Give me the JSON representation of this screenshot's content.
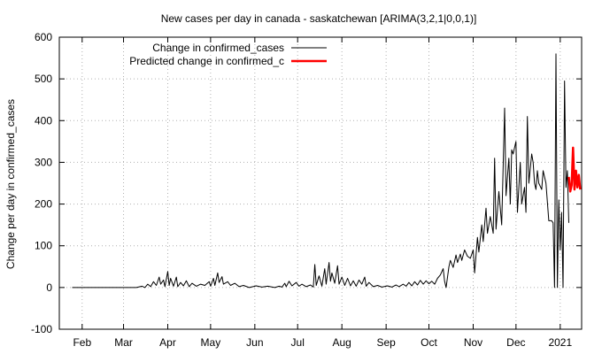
{
  "chart_data": {
    "type": "line",
    "title": "New cases per day in canada - saskatchewan [ARIMA(3,2,1|0,0,1)]",
    "ylabel": "Change per day in confirmed_cases",
    "xlabel": "",
    "ylim": [
      -100,
      600
    ],
    "yticks": [
      -100,
      0,
      100,
      200,
      300,
      400,
      500,
      600
    ],
    "xlim": [
      "2020-01-16",
      "2021-01-16"
    ],
    "xticks": [
      {
        "date": "2020-02-01",
        "label": "Feb"
      },
      {
        "date": "2020-03-01",
        "label": "Mar"
      },
      {
        "date": "2020-04-01",
        "label": "Apr"
      },
      {
        "date": "2020-05-01",
        "label": "May"
      },
      {
        "date": "2020-06-01",
        "label": "Jun"
      },
      {
        "date": "2020-07-01",
        "label": "Jul"
      },
      {
        "date": "2020-08-01",
        "label": "Aug"
      },
      {
        "date": "2020-09-01",
        "label": "Sep"
      },
      {
        "date": "2020-10-01",
        "label": "Oct"
      },
      {
        "date": "2020-11-01",
        "label": "Nov"
      },
      {
        "date": "2020-12-01",
        "label": "Dec"
      },
      {
        "date": "2021-01-01",
        "label": "2021"
      }
    ],
    "grid": true,
    "legend_position": "top-left",
    "series": [
      {
        "name": "Change in confirmed_cases",
        "color": "#000000",
        "points": [
          [
            "2020-01-25",
            0
          ],
          [
            "2020-03-10",
            0
          ],
          [
            "2020-03-14",
            3
          ],
          [
            "2020-03-16",
            0
          ],
          [
            "2020-03-18",
            8
          ],
          [
            "2020-03-20",
            2
          ],
          [
            "2020-03-22",
            14
          ],
          [
            "2020-03-24",
            5
          ],
          [
            "2020-03-26",
            25
          ],
          [
            "2020-03-27",
            8
          ],
          [
            "2020-03-29",
            18
          ],
          [
            "2020-03-30",
            2
          ],
          [
            "2020-04-01",
            38
          ],
          [
            "2020-04-02",
            5
          ],
          [
            "2020-04-03",
            22
          ],
          [
            "2020-04-05",
            3
          ],
          [
            "2020-04-07",
            25
          ],
          [
            "2020-04-08",
            2
          ],
          [
            "2020-04-10",
            12
          ],
          [
            "2020-04-12",
            4
          ],
          [
            "2020-04-14",
            16
          ],
          [
            "2020-04-16",
            2
          ],
          [
            "2020-04-18",
            10
          ],
          [
            "2020-04-21",
            3
          ],
          [
            "2020-04-24",
            8
          ],
          [
            "2020-04-27",
            5
          ],
          [
            "2020-04-30",
            14
          ],
          [
            "2020-05-01",
            3
          ],
          [
            "2020-05-03",
            22
          ],
          [
            "2020-05-04",
            5
          ],
          [
            "2020-05-06",
            35
          ],
          [
            "2020-05-07",
            12
          ],
          [
            "2020-05-09",
            26
          ],
          [
            "2020-05-10",
            8
          ],
          [
            "2020-05-13",
            14
          ],
          [
            "2020-05-15",
            5
          ],
          [
            "2020-05-18",
            10
          ],
          [
            "2020-05-21",
            2
          ],
          [
            "2020-05-24",
            5
          ],
          [
            "2020-05-28",
            0
          ],
          [
            "2020-06-02",
            4
          ],
          [
            "2020-06-06",
            1
          ],
          [
            "2020-06-10",
            3
          ],
          [
            "2020-06-15",
            0
          ],
          [
            "2020-06-18",
            3
          ],
          [
            "2020-06-20",
            1
          ],
          [
            "2020-06-22",
            10
          ],
          [
            "2020-06-23",
            2
          ],
          [
            "2020-06-25",
            15
          ],
          [
            "2020-06-27",
            4
          ],
          [
            "2020-06-30",
            12
          ],
          [
            "2020-07-02",
            3
          ],
          [
            "2020-07-04",
            8
          ],
          [
            "2020-07-07",
            2
          ],
          [
            "2020-07-10",
            6
          ],
          [
            "2020-07-12",
            1
          ],
          [
            "2020-07-13",
            55
          ],
          [
            "2020-07-14",
            5
          ],
          [
            "2020-07-16",
            28
          ],
          [
            "2020-07-18",
            3
          ],
          [
            "2020-07-20",
            45
          ],
          [
            "2020-07-21",
            8
          ],
          [
            "2020-07-23",
            60
          ],
          [
            "2020-07-24",
            15
          ],
          [
            "2020-07-25",
            35
          ],
          [
            "2020-07-27",
            10
          ],
          [
            "2020-07-29",
            52
          ],
          [
            "2020-07-30",
            8
          ],
          [
            "2020-08-01",
            25
          ],
          [
            "2020-08-03",
            5
          ],
          [
            "2020-08-05",
            22
          ],
          [
            "2020-08-07",
            4
          ],
          [
            "2020-08-09",
            16
          ],
          [
            "2020-08-11",
            3
          ],
          [
            "2020-08-13",
            18
          ],
          [
            "2020-08-15",
            8
          ],
          [
            "2020-08-17",
            25
          ],
          [
            "2020-08-18",
            3
          ],
          [
            "2020-08-20",
            12
          ],
          [
            "2020-08-23",
            2
          ],
          [
            "2020-08-26",
            5
          ],
          [
            "2020-08-29",
            1
          ],
          [
            "2020-09-02",
            4
          ],
          [
            "2020-09-05",
            1
          ],
          [
            "2020-09-08",
            6
          ],
          [
            "2020-09-10",
            2
          ],
          [
            "2020-09-13",
            8
          ],
          [
            "2020-09-15",
            3
          ],
          [
            "2020-09-17",
            12
          ],
          [
            "2020-09-19",
            4
          ],
          [
            "2020-09-21",
            14
          ],
          [
            "2020-09-23",
            6
          ],
          [
            "2020-09-25",
            17
          ],
          [
            "2020-09-27",
            8
          ],
          [
            "2020-09-29",
            16
          ],
          [
            "2020-10-01",
            9
          ],
          [
            "2020-10-03",
            15
          ],
          [
            "2020-10-05",
            8
          ],
          [
            "2020-10-07",
            22
          ],
          [
            "2020-10-09",
            30
          ],
          [
            "2020-10-11",
            45
          ],
          [
            "2020-10-12",
            15
          ],
          [
            "2020-10-13",
            0
          ],
          [
            "2020-10-15",
            50
          ],
          [
            "2020-10-16",
            65
          ],
          [
            "2020-10-18",
            48
          ],
          [
            "2020-10-20",
            78
          ],
          [
            "2020-10-21",
            60
          ],
          [
            "2020-10-23",
            80
          ],
          [
            "2020-10-24",
            65
          ],
          [
            "2020-10-26",
            90
          ],
          [
            "2020-10-28",
            75
          ],
          [
            "2020-10-30",
            70
          ],
          [
            "2020-11-01",
            90
          ],
          [
            "2020-11-02",
            35
          ],
          [
            "2020-11-04",
            120
          ],
          [
            "2020-11-05",
            85
          ],
          [
            "2020-11-07",
            150
          ],
          [
            "2020-11-08",
            110
          ],
          [
            "2020-11-10",
            190
          ],
          [
            "2020-11-11",
            130
          ],
          [
            "2020-11-13",
            170
          ],
          [
            "2020-11-15",
            130
          ],
          [
            "2020-11-16",
            310
          ],
          [
            "2020-11-17",
            140
          ],
          [
            "2020-11-19",
            230
          ],
          [
            "2020-11-21",
            150
          ],
          [
            "2020-11-23",
            430
          ],
          [
            "2020-11-24",
            220
          ],
          [
            "2020-11-26",
            310
          ],
          [
            "2020-11-27",
            200
          ],
          [
            "2020-11-28",
            330
          ],
          [
            "2020-11-29",
            320
          ],
          [
            "2020-12-01",
            350
          ],
          [
            "2020-12-02",
            180
          ],
          [
            "2020-12-04",
            300
          ],
          [
            "2020-12-05",
            200
          ],
          [
            "2020-12-07",
            240
          ],
          [
            "2020-12-08",
            180
          ],
          [
            "2020-12-09",
            410
          ],
          [
            "2020-12-10",
            250
          ],
          [
            "2020-12-12",
            320
          ],
          [
            "2020-12-13",
            300
          ],
          [
            "2020-12-14",
            250
          ],
          [
            "2020-12-15",
            235
          ],
          [
            "2020-12-16",
            280
          ],
          [
            "2020-12-17",
            250
          ],
          [
            "2020-12-19",
            235
          ],
          [
            "2020-12-20",
            280
          ],
          [
            "2020-12-22",
            250
          ],
          [
            "2020-12-24",
            160
          ],
          [
            "2020-12-26",
            160
          ],
          [
            "2020-12-27",
            155
          ],
          [
            "2020-12-28",
            0
          ],
          [
            "2020-12-29",
            560
          ],
          [
            "2020-12-30",
            0
          ],
          [
            "2020-12-31",
            210
          ],
          [
            "2021-01-01",
            90
          ],
          [
            "2021-01-02",
            180
          ],
          [
            "2021-01-03",
            0
          ],
          [
            "2021-01-04",
            495
          ],
          [
            "2021-01-05",
            240
          ],
          [
            "2021-01-06",
            280
          ],
          [
            "2021-01-07",
            155
          ]
        ]
      },
      {
        "name": "Predicted change in confirmed_c",
        "color": "#ff0000",
        "points": [
          [
            "2021-01-07",
            265
          ],
          [
            "2021-01-08",
            230
          ],
          [
            "2021-01-09",
            245
          ],
          [
            "2021-01-10",
            335
          ],
          [
            "2021-01-11",
            235
          ],
          [
            "2021-01-12",
            280
          ],
          [
            "2021-01-13",
            240
          ],
          [
            "2021-01-14",
            270
          ],
          [
            "2021-01-15",
            235
          ]
        ]
      }
    ]
  }
}
